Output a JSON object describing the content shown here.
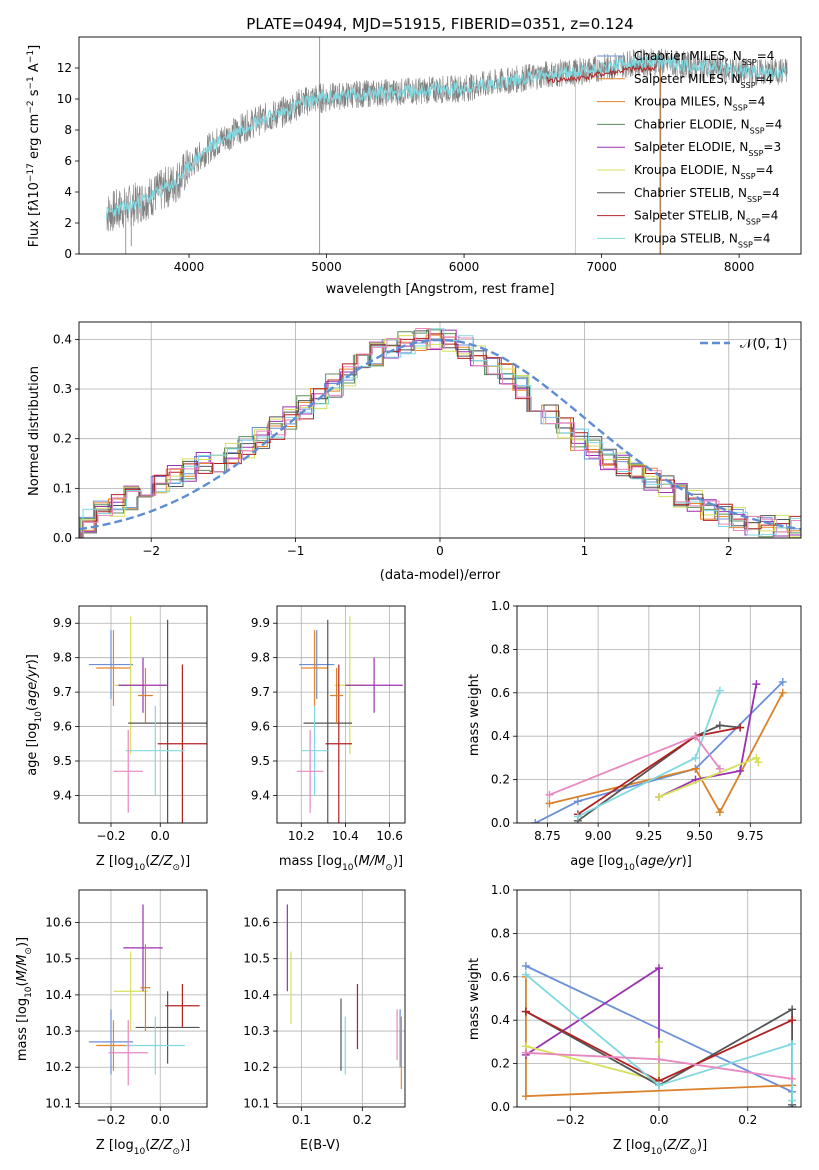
{
  "colors": {
    "chabrier_miles": "#6a8fd8",
    "salpeter_miles": "#e8862a",
    "kroupa_miles": "#d9822b",
    "chabrier_elodie": "#5c8f5c",
    "salpeter_elodie": "#9a32b0",
    "kroupa_elodie": "#d6e05a",
    "chabrier_stelib": "#555555",
    "salpeter_stelib": "#b22222",
    "kroupa_stelib": "#80d8e0",
    "pink": "#e887c0",
    "gauss": "#5f8dd3",
    "spectrum": "#808080"
  },
  "chart_data": [
    {
      "type": "line",
      "title": "PLATE=0494, MJD=51915, FIBERID=0351, z=0.124",
      "xlabel": "wavelength [Angstrom, rest frame]",
      "ylabel": "Flux [f_λ 10^-17 erg cm^-2 s^-1 A^-1]",
      "xlim": [
        3200,
        8450
      ],
      "ylim": [
        0,
        14
      ],
      "xticks": [
        "4000",
        "5000",
        "6000",
        "7000",
        "8000"
      ],
      "yticks": [
        "0",
        "2",
        "4",
        "6",
        "8",
        "10",
        "12"
      ],
      "legend_position": "top-right",
      "spectrum_outline": {
        "x": [
          3400,
          3500,
          3600,
          3700,
          3800,
          3900,
          4000,
          4100,
          4200,
          4300,
          4400,
          4500,
          4600,
          4700,
          4800,
          4900,
          5000,
          5200,
          5400,
          5600,
          5800,
          6000,
          6200,
          6400,
          6600,
          6800,
          7000,
          7200,
          7400,
          7600,
          7800,
          8000,
          8200,
          8350
        ],
        "y": [
          2.6,
          2.9,
          3.2,
          3.6,
          4.1,
          4.6,
          5.6,
          6.5,
          7.2,
          7.7,
          8.2,
          8.6,
          8.9,
          9.2,
          9.7,
          10.0,
          10.1,
          10.3,
          10.4,
          10.5,
          10.6,
          10.7,
          11.0,
          11.3,
          11.6,
          11.7,
          12.0,
          12.3,
          12.4,
          12.2,
          12.0,
          11.8,
          11.7,
          11.8
        ]
      },
      "series": [
        {
          "name": "Chabrier MILES, N_SSP=4"
        },
        {
          "name": "Salpeter MILES, N_SSP=4"
        },
        {
          "name": "Kroupa MILES, N_SSP=4"
        },
        {
          "name": "Chabrier ELODIE, N_SSP=4"
        },
        {
          "name": "Salpeter ELODIE, N_SSP=3"
        },
        {
          "name": "Kroupa ELODIE, N_SSP=4"
        },
        {
          "name": "Chabrier STELIB, N_SSP=4"
        },
        {
          "name": "Salpeter STELIB, N_SSP=4"
        },
        {
          "name": "Kroupa STELIB, N_SSP=4"
        }
      ]
    },
    {
      "type": "line",
      "xlabel": "(data-model)/error",
      "ylabel": "Normed distribution",
      "xlim": [
        -2.5,
        2.5
      ],
      "ylim": [
        0,
        0.435
      ],
      "xticks": [
        "−2",
        "−1",
        "0",
        "1",
        "2"
      ],
      "yticks": [
        "0.0",
        "0.1",
        "0.2",
        "0.3",
        "0.4"
      ],
      "legend": "𝒩(0, 1)",
      "legend_position": "top-right",
      "grid": true,
      "bins": {
        "start": -2.5,
        "width": 0.1
      },
      "histogram_series": [
        {
          "values": [
            0.034,
            0.054,
            0.067,
            0.081,
            0.096,
            0.111,
            0.125,
            0.138,
            0.149,
            0.158,
            0.166,
            0.18,
            0.2,
            0.22,
            0.24,
            0.262,
            0.284,
            0.307,
            0.33,
            0.352,
            0.37,
            0.385,
            0.396,
            0.402,
            0.401,
            0.395,
            0.384,
            0.369,
            0.35,
            0.328,
            0.304,
            0.278,
            0.252,
            0.226,
            0.201,
            0.18,
            0.162,
            0.147,
            0.133,
            0.119,
            0.103,
            0.087,
            0.072,
            0.06,
            0.048,
            0.038,
            0.03,
            0.025,
            0.022,
            0.02
          ]
        }
      ],
      "gauss": {
        "mu": 0,
        "sigma": 1
      }
    },
    {
      "type": "scatter",
      "xlabel": "Z [log10(Z/Z☉)]",
      "ylabel": "age [log10(age/yr)]",
      "xlim": [
        -0.33,
        0.19
      ],
      "ylim": [
        9.32,
        9.95
      ],
      "xticks": [
        "−0.2",
        "0.0"
      ],
      "yticks": [
        "9.4",
        "9.5",
        "9.6",
        "9.7",
        "9.8",
        "9.9"
      ],
      "points": [
        {
          "color": "chabrier_miles",
          "x": -0.2,
          "y": 9.78,
          "xerr": 0.09,
          "yerr": 0.1
        },
        {
          "color": "salpeter_miles",
          "x": -0.19,
          "y": 9.77,
          "xerr": 0.07,
          "yerr": 0.11
        },
        {
          "color": "kroupa_elodie",
          "x": -0.12,
          "y": 9.72,
          "xerr": 0.07,
          "yerr": 0.2
        },
        {
          "color": "salpeter_elodie",
          "x": -0.07,
          "y": 9.72,
          "xerr": 0.1,
          "yerr": 0.08
        },
        {
          "color": "chabrier_stelib",
          "x": 0.03,
          "y": 9.61,
          "xerr": 0.16,
          "yerr": 0.3
        },
        {
          "color": "salpeter_stelib",
          "x": 0.09,
          "y": 9.55,
          "xerr": 0.1,
          "yerr": 0.23
        },
        {
          "color": "kroupa_stelib",
          "x": -0.02,
          "y": 9.53,
          "xerr": 0.12,
          "yerr": 0.13
        },
        {
          "color": "pink",
          "x": -0.13,
          "y": 9.47,
          "xerr": 0.06,
          "yerr": 0.12
        },
        {
          "color": "kroupa_miles",
          "x": -0.06,
          "y": 9.69,
          "xerr": 0.03,
          "yerr": 0.08
        }
      ]
    },
    {
      "type": "scatter",
      "xlabel": "mass [log10(M/M☉)]",
      "ylabel": "",
      "xlim": [
        10.09,
        10.67
      ],
      "ylim": [
        9.32,
        9.95
      ],
      "xticks": [
        "10.2",
        "10.4",
        "10.6"
      ],
      "yticks": [
        "9.4",
        "9.5",
        "9.6",
        "9.7",
        "9.8",
        "9.9"
      ],
      "points": [
        {
          "color": "chabrier_miles",
          "x": 10.27,
          "y": 9.78,
          "xerr": 0.08,
          "yerr": 0.1
        },
        {
          "color": "salpeter_miles",
          "x": 10.26,
          "y": 9.77,
          "xerr": 0.06,
          "yerr": 0.11
        },
        {
          "color": "kroupa_elodie",
          "x": 10.42,
          "y": 9.72,
          "xerr": 0.07,
          "yerr": 0.2
        },
        {
          "color": "salpeter_elodie",
          "x": 10.53,
          "y": 9.72,
          "xerr": 0.13,
          "yerr": 0.08
        },
        {
          "color": "chabrier_stelib",
          "x": 10.32,
          "y": 9.61,
          "xerr": 0.11,
          "yerr": 0.3
        },
        {
          "color": "salpeter_stelib",
          "x": 10.37,
          "y": 9.55,
          "xerr": 0.06,
          "yerr": 0.23
        },
        {
          "color": "kroupa_stelib",
          "x": 10.26,
          "y": 9.53,
          "xerr": 0.06,
          "yerr": 0.13
        },
        {
          "color": "pink",
          "x": 10.24,
          "y": 9.47,
          "xerr": 0.06,
          "yerr": 0.12
        },
        {
          "color": "kroupa_miles",
          "x": 10.36,
          "y": 9.69,
          "xerr": 0.03,
          "yerr": 0.08
        }
      ]
    },
    {
      "type": "line",
      "xlabel": "age [log10(age/yr)]",
      "ylabel": "mass weight",
      "xlim": [
        8.6,
        10.0
      ],
      "ylim": [
        0,
        1.0
      ],
      "xticks": [
        "8.75",
        "9.00",
        "9.25",
        "9.50",
        "9.75"
      ],
      "yticks": [
        "0.0",
        "0.2",
        "0.4",
        "0.6",
        "0.8",
        "1.0"
      ],
      "series": [
        {
          "color": "chabrier_miles",
          "x": [
            8.69,
            8.9,
            9.48,
            9.91
          ],
          "y": [
            0.0,
            0.1,
            0.25,
            0.65
          ]
        },
        {
          "color": "kroupa_miles",
          "x": [
            8.76,
            9.48,
            9.6,
            9.91
          ],
          "y": [
            0.09,
            0.25,
            0.05,
            0.6
          ]
        },
        {
          "color": "salpeter_elodie",
          "x": [
            9.3,
            9.48,
            9.7,
            9.78
          ],
          "y": [
            0.12,
            0.2,
            0.24,
            0.64
          ]
        },
        {
          "color": "kroupa_elodie",
          "x": [
            9.3,
            9.78,
            9.79
          ],
          "y": [
            0.12,
            0.3,
            0.28
          ]
        },
        {
          "color": "chabrier_stelib",
          "x": [
            8.9,
            9.48,
            9.6,
            9.7
          ],
          "y": [
            0.01,
            0.4,
            0.45,
            0.44
          ]
        },
        {
          "color": "salpeter_stelib",
          "x": [
            8.9,
            9.48,
            9.7
          ],
          "y": [
            0.04,
            0.4,
            0.44
          ]
        },
        {
          "color": "kroupa_stelib",
          "x": [
            8.9,
            9.48,
            9.6
          ],
          "y": [
            0.03,
            0.3,
            0.61
          ]
        },
        {
          "color": "pink",
          "x": [
            8.76,
            9.48,
            9.6
          ],
          "y": [
            0.13,
            0.4,
            0.25
          ]
        }
      ]
    },
    {
      "type": "scatter",
      "xlabel": "Z [log10(Z/Z☉)]",
      "ylabel": "mass [log10(M/M☉)]",
      "xlim": [
        -0.33,
        0.19
      ],
      "ylim": [
        10.09,
        10.69
      ],
      "xticks": [
        "−0.2",
        "0.0"
      ],
      "yticks": [
        "10.1",
        "10.2",
        "10.3",
        "10.4",
        "10.5",
        "10.6"
      ],
      "points": [
        {
          "color": "chabrier_miles",
          "x": -0.2,
          "y": 10.27,
          "xerr": 0.09,
          "yerr": 0.09
        },
        {
          "color": "salpeter_miles",
          "x": -0.19,
          "y": 10.26,
          "xerr": 0.07,
          "yerr": 0.07
        },
        {
          "color": "kroupa_elodie",
          "x": -0.12,
          "y": 10.41,
          "xerr": 0.07,
          "yerr": 0.11
        },
        {
          "color": "salpeter_elodie",
          "x": -0.07,
          "y": 10.53,
          "xerr": 0.08,
          "yerr": 0.12
        },
        {
          "color": "chabrier_stelib",
          "x": 0.03,
          "y": 10.31,
          "xerr": 0.13,
          "yerr": 0.1
        },
        {
          "color": "salpeter_stelib",
          "x": 0.09,
          "y": 10.37,
          "xerr": 0.07,
          "yerr": 0.06
        },
        {
          "color": "kroupa_stelib",
          "x": -0.02,
          "y": 10.26,
          "xerr": 0.12,
          "yerr": 0.08
        },
        {
          "color": "pink",
          "x": -0.13,
          "y": 10.24,
          "xerr": 0.08,
          "yerr": 0.09
        },
        {
          "color": "kroupa_miles",
          "x": -0.06,
          "y": 10.42,
          "xerr": 0.02,
          "yerr": 0.12
        }
      ]
    },
    {
      "type": "scatter",
      "xlabel": "E(B-V)",
      "ylabel": "",
      "xlim": [
        0.06,
        0.27
      ],
      "ylim": [
        10.09,
        10.69
      ],
      "xticks": [
        "0.1",
        "0.2"
      ],
      "yticks": [
        "10.1",
        "10.2",
        "10.3",
        "10.4",
        "10.5",
        "10.6"
      ],
      "points": [
        {
          "color": "salpeter_elodie",
          "x": 0.077,
          "y": 10.53,
          "yerr": 0.12
        },
        {
          "color": "kroupa_elodie",
          "x": 0.083,
          "y": 10.42,
          "yerr": 0.1
        },
        {
          "color": "chabrier_stelib",
          "x": 0.165,
          "y": 10.29,
          "yerr": 0.1
        },
        {
          "color": "kroupa_stelib",
          "x": 0.172,
          "y": 10.26,
          "yerr": 0.08
        },
        {
          "color": "salpeter_stelib",
          "x": 0.192,
          "y": 10.34,
          "yerr": 0.09
        },
        {
          "color": "pink",
          "x": 0.257,
          "y": 10.29,
          "yerr": 0.07
        },
        {
          "color": "chabrier_miles",
          "x": 0.262,
          "y": 10.28,
          "yerr": 0.08
        },
        {
          "color": "salpeter_miles",
          "x": 0.264,
          "y": 10.24,
          "yerr": 0.1
        }
      ]
    },
    {
      "type": "line",
      "xlabel": "Z [log10(Z/Z☉)]",
      "ylabel": "mass weight",
      "xlim": [
        -0.32,
        0.32
      ],
      "ylim": [
        0,
        1.0
      ],
      "xticks": [
        "−0.2",
        "0.0",
        "0.2"
      ],
      "yticks": [
        "0.0",
        "0.2",
        "0.4",
        "0.6",
        "0.8",
        "1.0"
      ],
      "series": [
        {
          "color": "chabrier_miles",
          "x": [
            -0.3,
            0.3,
            0.3
          ],
          "y": [
            0.65,
            0.07,
            0.0
          ]
        },
        {
          "color": "kroupa_miles",
          "x": [
            -0.3,
            -0.3,
            0.3
          ],
          "y": [
            0.6,
            0.05,
            0.1
          ]
        },
        {
          "color": "salpeter_elodie",
          "x": [
            -0.3,
            0.0,
            0.0
          ],
          "y": [
            0.24,
            0.64,
            0.12
          ]
        },
        {
          "color": "kroupa_elodie",
          "x": [
            -0.3,
            0.0,
            0.0
          ],
          "y": [
            0.28,
            0.12,
            0.3
          ]
        },
        {
          "color": "chabrier_stelib",
          "x": [
            -0.3,
            0.0,
            0.3,
            0.3
          ],
          "y": [
            0.44,
            0.1,
            0.45,
            0.01
          ]
        },
        {
          "color": "salpeter_stelib",
          "x": [
            -0.3,
            0.0,
            0.3
          ],
          "y": [
            0.44,
            0.12,
            0.4
          ]
        },
        {
          "color": "kroupa_stelib",
          "x": [
            -0.3,
            0.0,
            0.3,
            0.3
          ],
          "y": [
            0.61,
            0.1,
            0.29,
            0.03
          ]
        },
        {
          "color": "pink",
          "x": [
            -0.3,
            0.0,
            0.3
          ],
          "y": [
            0.25,
            0.22,
            0.13
          ]
        }
      ]
    }
  ]
}
